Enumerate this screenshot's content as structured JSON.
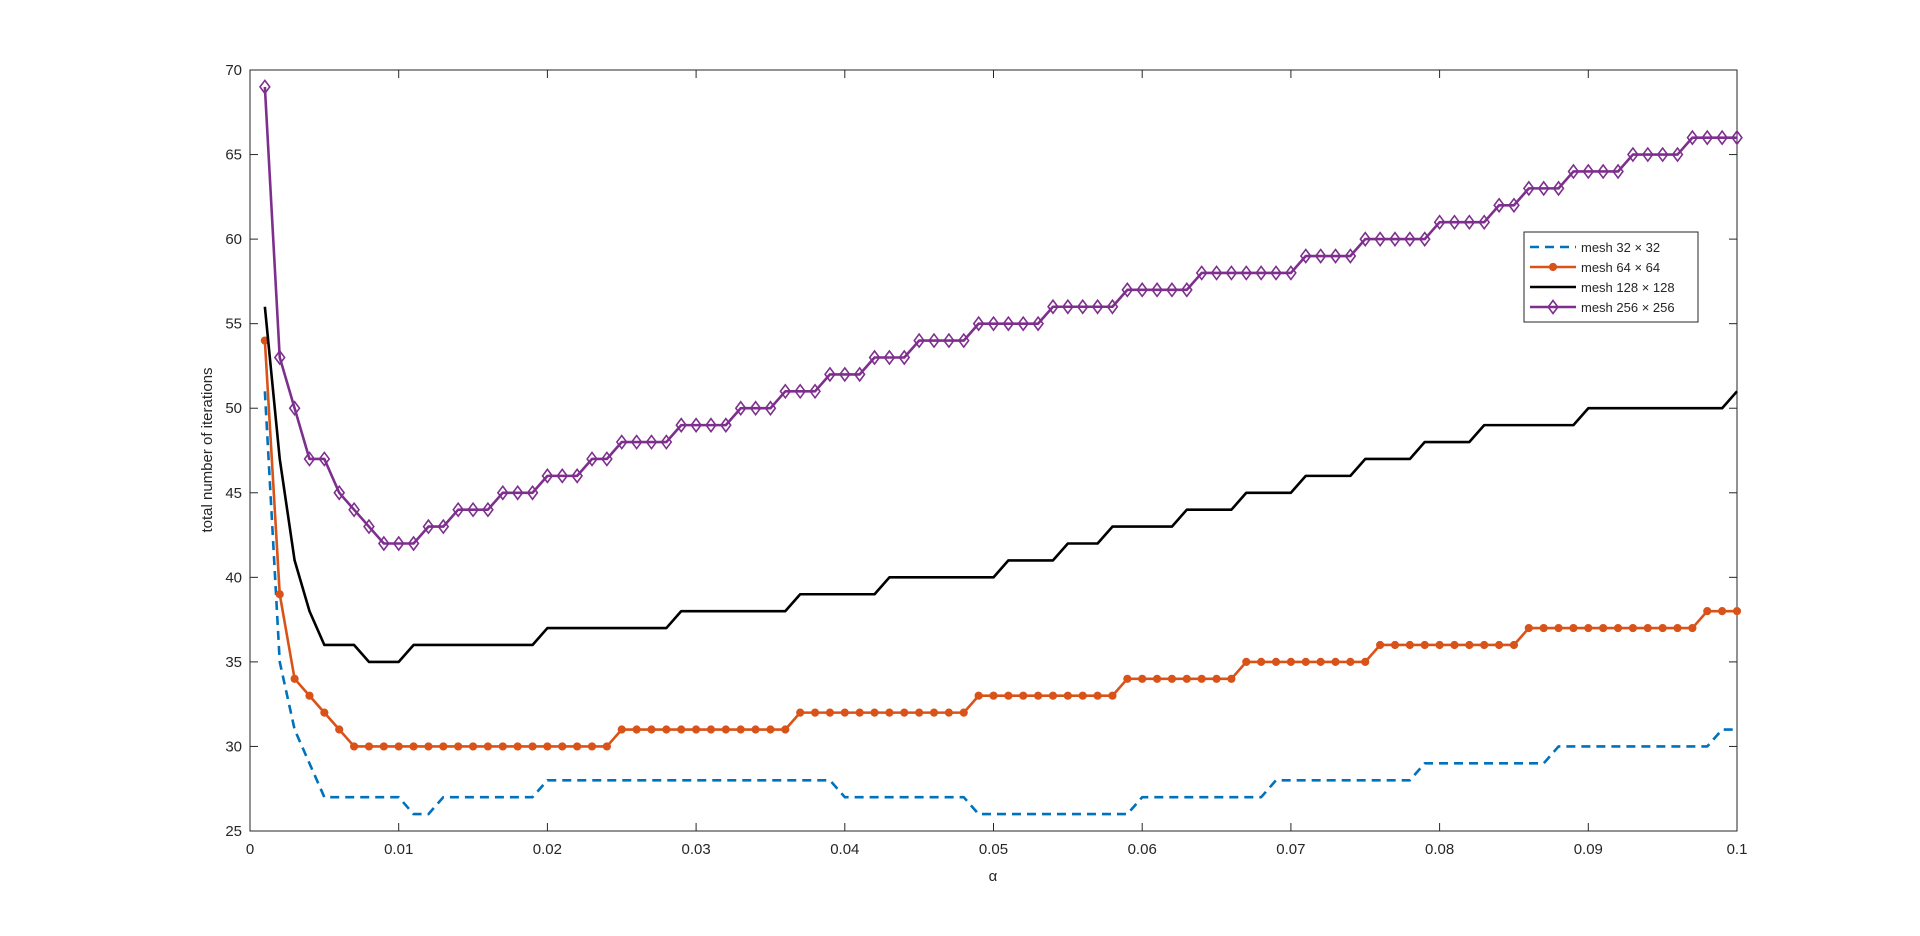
{
  "chart_data": {
    "type": "line",
    "title": "",
    "xlabel": "α",
    "ylabel": "total number of iterations",
    "xlim": [
      0,
      0.1
    ],
    "ylim": [
      25,
      70
    ],
    "x_ticks": [
      0,
      0.01,
      0.02,
      0.03,
      0.04,
      0.05,
      0.06,
      0.07,
      0.08,
      0.09,
      0.1
    ],
    "x_tick_labels": [
      "0",
      "0.01",
      "0.02",
      "0.03",
      "0.04",
      "0.05",
      "0.06",
      "0.07",
      "0.08",
      "0.09",
      "0.1"
    ],
    "y_ticks": [
      25,
      30,
      35,
      40,
      45,
      50,
      55,
      60,
      65,
      70
    ],
    "y_tick_labels": [
      "25",
      "30",
      "35",
      "40",
      "45",
      "50",
      "55",
      "60",
      "65",
      "70"
    ],
    "grid": false,
    "legend_position": "top-right",
    "x": [
      0.001,
      0.002,
      0.003,
      0.004,
      0.005,
      0.006,
      0.007,
      0.008,
      0.009,
      0.01,
      0.011,
      0.012,
      0.013,
      0.014,
      0.015,
      0.016,
      0.017,
      0.018,
      0.019,
      0.02,
      0.021,
      0.022,
      0.023,
      0.024,
      0.025,
      0.026,
      0.027,
      0.028,
      0.029,
      0.03,
      0.031,
      0.032,
      0.033,
      0.034,
      0.035,
      0.036,
      0.037,
      0.038,
      0.039,
      0.04,
      0.041,
      0.042,
      0.043,
      0.044,
      0.045,
      0.046,
      0.047,
      0.048,
      0.049,
      0.05,
      0.051,
      0.052,
      0.053,
      0.054,
      0.055,
      0.056,
      0.057,
      0.058,
      0.059,
      0.06,
      0.061,
      0.062,
      0.063,
      0.064,
      0.065,
      0.066,
      0.067,
      0.068,
      0.069,
      0.07,
      0.071,
      0.072,
      0.073,
      0.074,
      0.075,
      0.076,
      0.077,
      0.078,
      0.079,
      0.08,
      0.081,
      0.082,
      0.083,
      0.084,
      0.085,
      0.086,
      0.087,
      0.088,
      0.089,
      0.09,
      0.091,
      0.092,
      0.093,
      0.094,
      0.095,
      0.096,
      0.097,
      0.098,
      0.099,
      0.1
    ],
    "series": [
      {
        "name": "mesh 32 × 32",
        "color": "#0072BD",
        "line_style": "dashed",
        "marker": "none",
        "values": [
          51,
          35,
          31,
          29,
          27,
          27,
          27,
          27,
          27,
          27,
          26,
          26,
          27,
          27,
          27,
          27,
          27,
          27,
          27,
          28,
          28,
          28,
          28,
          28,
          28,
          28,
          28,
          28,
          28,
          28,
          28,
          28,
          28,
          28,
          28,
          28,
          28,
          28,
          28,
          27,
          27,
          27,
          27,
          27,
          27,
          27,
          27,
          27,
          26,
          26,
          26,
          26,
          26,
          26,
          26,
          26,
          26,
          26,
          26,
          27,
          27,
          27,
          27,
          27,
          27,
          27,
          27,
          27,
          28,
          28,
          28,
          28,
          28,
          28,
          28,
          28,
          28,
          28,
          29,
          29,
          29,
          29,
          29,
          29,
          29,
          29,
          29,
          30,
          30,
          30,
          30,
          30,
          30,
          30,
          30,
          30,
          30,
          30,
          31,
          31
        ]
      },
      {
        "name": "mesh 64 × 64",
        "color": "#D95319",
        "line_style": "solid",
        "marker": "circle",
        "values": [
          54,
          39,
          34,
          33,
          32,
          31,
          30,
          30,
          30,
          30,
          30,
          30,
          30,
          30,
          30,
          30,
          30,
          30,
          30,
          30,
          30,
          30,
          30,
          30,
          31,
          31,
          31,
          31,
          31,
          31,
          31,
          31,
          31,
          31,
          31,
          31,
          32,
          32,
          32,
          32,
          32,
          32,
          32,
          32,
          32,
          32,
          32,
          32,
          33,
          33,
          33,
          33,
          33,
          33,
          33,
          33,
          33,
          33,
          34,
          34,
          34,
          34,
          34,
          34,
          34,
          34,
          35,
          35,
          35,
          35,
          35,
          35,
          35,
          35,
          35,
          36,
          36,
          36,
          36,
          36,
          36,
          36,
          36,
          36,
          36,
          37,
          37,
          37,
          37,
          37,
          37,
          37,
          37,
          37,
          37,
          37,
          37,
          38,
          38,
          38
        ]
      },
      {
        "name": "mesh 128 × 128",
        "color": "#000000",
        "line_style": "solid",
        "marker": "none",
        "values": [
          56,
          47,
          41,
          38,
          36,
          36,
          36,
          35,
          35,
          35,
          36,
          36,
          36,
          36,
          36,
          36,
          36,
          36,
          36,
          37,
          37,
          37,
          37,
          37,
          37,
          37,
          37,
          37,
          38,
          38,
          38,
          38,
          38,
          38,
          38,
          38,
          39,
          39,
          39,
          39,
          39,
          39,
          40,
          40,
          40,
          40,
          40,
          40,
          40,
          40,
          41,
          41,
          41,
          41,
          42,
          42,
          42,
          43,
          43,
          43,
          43,
          43,
          44,
          44,
          44,
          44,
          45,
          45,
          45,
          45,
          46,
          46,
          46,
          46,
          47,
          47,
          47,
          47,
          48,
          48,
          48,
          48,
          49,
          49,
          49,
          49,
          49,
          49,
          49,
          50,
          50,
          50,
          50,
          50,
          50,
          50,
          50,
          50,
          50,
          51
        ]
      },
      {
        "name": "mesh 256 × 256",
        "color": "#7E2F8E",
        "line_style": "solid",
        "marker": "diamond",
        "values": [
          69,
          53,
          50,
          47,
          47,
          45,
          44,
          43,
          42,
          42,
          42,
          43,
          43,
          44,
          44,
          44,
          45,
          45,
          45,
          46,
          46,
          46,
          47,
          47,
          48,
          48,
          48,
          48,
          49,
          49,
          49,
          49,
          50,
          50,
          50,
          51,
          51,
          51,
          52,
          52,
          52,
          53,
          53,
          53,
          54,
          54,
          54,
          54,
          55,
          55,
          55,
          55,
          55,
          56,
          56,
          56,
          56,
          56,
          57,
          57,
          57,
          57,
          57,
          58,
          58,
          58,
          58,
          58,
          58,
          58,
          59,
          59,
          59,
          59,
          60,
          60,
          60,
          60,
          60,
          61,
          61,
          61,
          61,
          62,
          62,
          63,
          63,
          63,
          64,
          64,
          64,
          64,
          65,
          65,
          65,
          65,
          66,
          66,
          66,
          66
        ]
      }
    ]
  }
}
